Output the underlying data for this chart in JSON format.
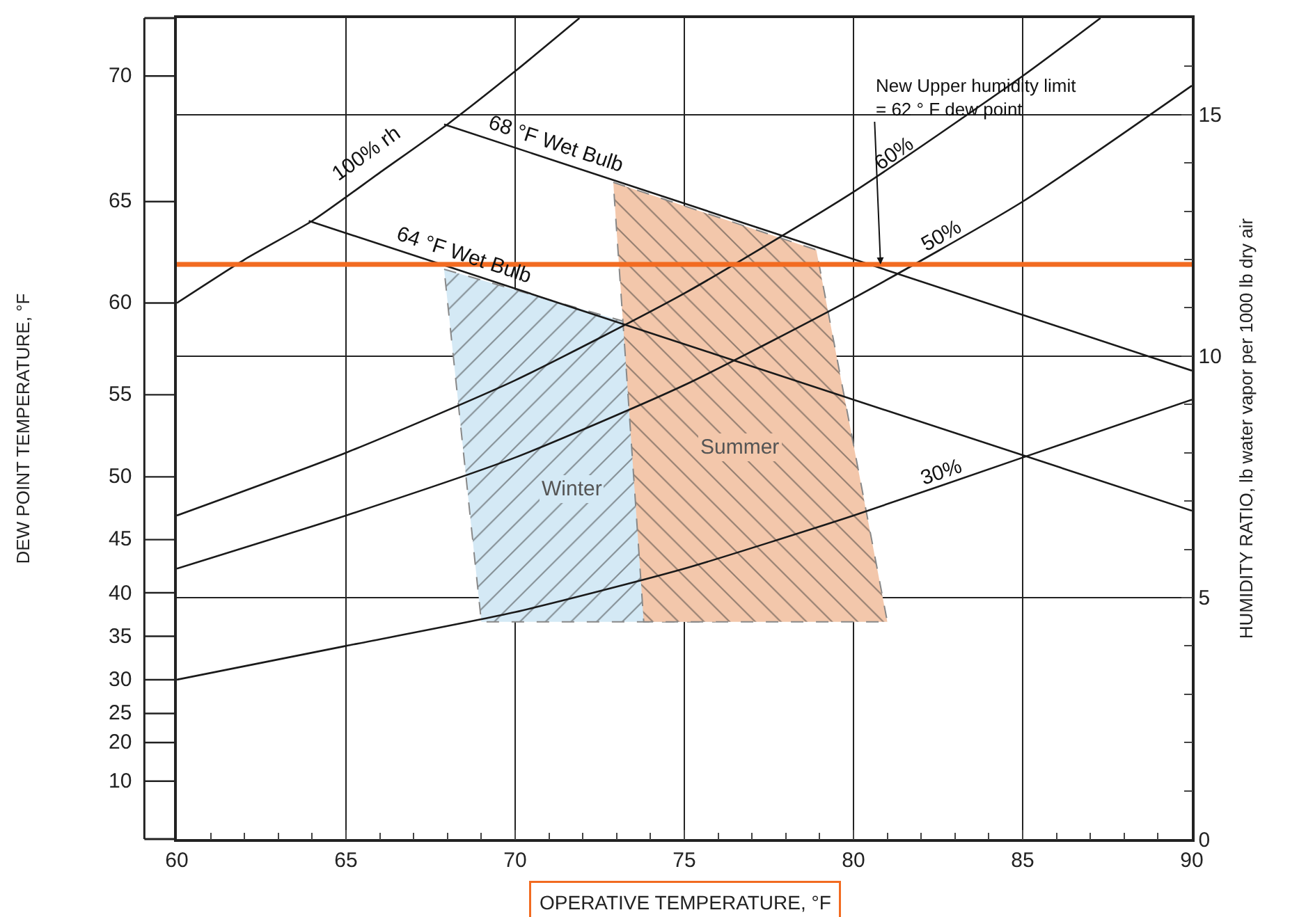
{
  "chart_data": {
    "type": "line",
    "xlabel": "OPERATIVE TEMPERATURE, °F",
    "ylabel": "HUMIDITY RATIO, lb water vapor per 1000 lb dry air",
    "xlim": [
      60,
      90
    ],
    "xticks": [
      60,
      {
        "value": 61,
        "label": null
      },
      {
        "value": 62,
        "label": null
      },
      {
        "value": 63,
        "label": null
      },
      {
        "value": 64,
        "label": null
      },
      65,
      {
        "value": 66,
        "label": null
      },
      {
        "value": 67,
        "label": null
      },
      {
        "value": 68,
        "label": null
      },
      {
        "value": 69,
        "label": null
      },
      70,
      {
        "value": 71,
        "label": null
      },
      {
        "value": 72,
        "label": null
      },
      {
        "value": 73,
        "label": null
      },
      {
        "value": 74,
        "label": null
      },
      75,
      {
        "value": 76,
        "label": null
      },
      {
        "value": 77,
        "label": null
      },
      {
        "value": 78,
        "label": null
      },
      {
        "value": 79,
        "label": null
      },
      80,
      {
        "value": 81,
        "label": null
      },
      {
        "value": 82,
        "label": null
      },
      {
        "value": 83,
        "label": null
      },
      {
        "value": 84,
        "label": null
      },
      85,
      {
        "value": 86,
        "label": null
      },
      {
        "value": 87,
        "label": null
      },
      {
        "value": 88,
        "label": null
      },
      {
        "value": 89,
        "label": null
      },
      90
    ],
    "ylim": [
      0,
      17
    ],
    "yticks": [
      0,
      {
        "value": 1,
        "label": null
      },
      {
        "value": 2,
        "label": null
      },
      {
        "value": 3,
        "label": null
      },
      {
        "value": 4,
        "label": null
      },
      5,
      {
        "value": 6,
        "label": null
      },
      {
        "value": 7,
        "label": null
      },
      {
        "value": 8,
        "label": null
      },
      {
        "value": 9,
        "label": null
      },
      10,
      {
        "value": 11,
        "label": null
      },
      {
        "value": 12,
        "label": null
      },
      {
        "value": 13,
        "label": null
      },
      {
        "value": 14,
        "label": null
      },
      15,
      {
        "value": 16,
        "label": null
      }
    ],
    "grid": true,
    "legend": false,
    "marker": "none",
    "line_style": "solid",
    "series": [
      {
        "type": "area",
        "name": "Winter",
        "color": "#d4e9f5",
        "x": [
          67.9,
          73.8,
          75.9,
          69.0
        ],
        "values": [
          11.8,
          10.6,
          4.5,
          4.5
        ]
      },
      {
        "type": "area",
        "name": "Summer",
        "color": "#f3c7ab",
        "x": [
          72.9,
          78.9,
          81.0,
          73.8
        ],
        "values": [
          13.6,
          12.2,
          4.5,
          4.5
        ]
      },
      {
        "color": "#1a1a1a",
        "x": [
          60,
          62,
          64,
          66,
          68,
          70,
          71.9
        ],
        "values": [
          11.1,
          12.0,
          12.8,
          13.8,
          14.8,
          15.9,
          17.0
        ]
      },
      {
        "color": "#1a1a1a",
        "x": [
          60,
          65,
          70,
          75,
          80,
          85,
          87.3
        ],
        "values": [
          6.7,
          8.0,
          9.5,
          11.3,
          13.4,
          15.8,
          17.0
        ]
      },
      {
        "color": "#1a1a1a",
        "x": [
          60,
          65,
          70,
          75,
          80,
          85,
          90
        ],
        "values": [
          5.6,
          6.7,
          7.9,
          9.4,
          11.2,
          13.2,
          15.6
        ]
      },
      {
        "color": "#1a1a1a",
        "x": [
          60,
          65,
          70,
          75,
          80,
          85,
          90
        ],
        "values": [
          3.3,
          4.0,
          4.7,
          5.6,
          6.7,
          7.9,
          9.1
        ]
      },
      {
        "color": "#1a1a1a",
        "x": [
          67.9,
          90
        ],
        "values": [
          14.8,
          9.7
        ]
      },
      {
        "color": "#1a1a1a",
        "x": [
          63.9,
          90
        ],
        "values": [
          12.8,
          6.8
        ]
      }
    ],
    "ref_lines": [
      {
        "axis": "y",
        "value": 11.9,
        "color": "#f26b21"
      }
    ],
    "annotations": [
      "DEW POINT TEMPERATURE, °F",
      {
        "text": "New Upper humidity limit\n= 62 ° F dew point",
        "x": 80.8,
        "y": 11.9
      },
      "100% rh",
      "68 °F Wet Bulb",
      "64 °F Wet Bulb",
      "60%",
      "50%",
      "30%",
      "70",
      "65",
      "60",
      "55",
      "50",
      "45",
      "40",
      "35",
      "30",
      "25",
      "20",
      "10"
    ]
  }
}
